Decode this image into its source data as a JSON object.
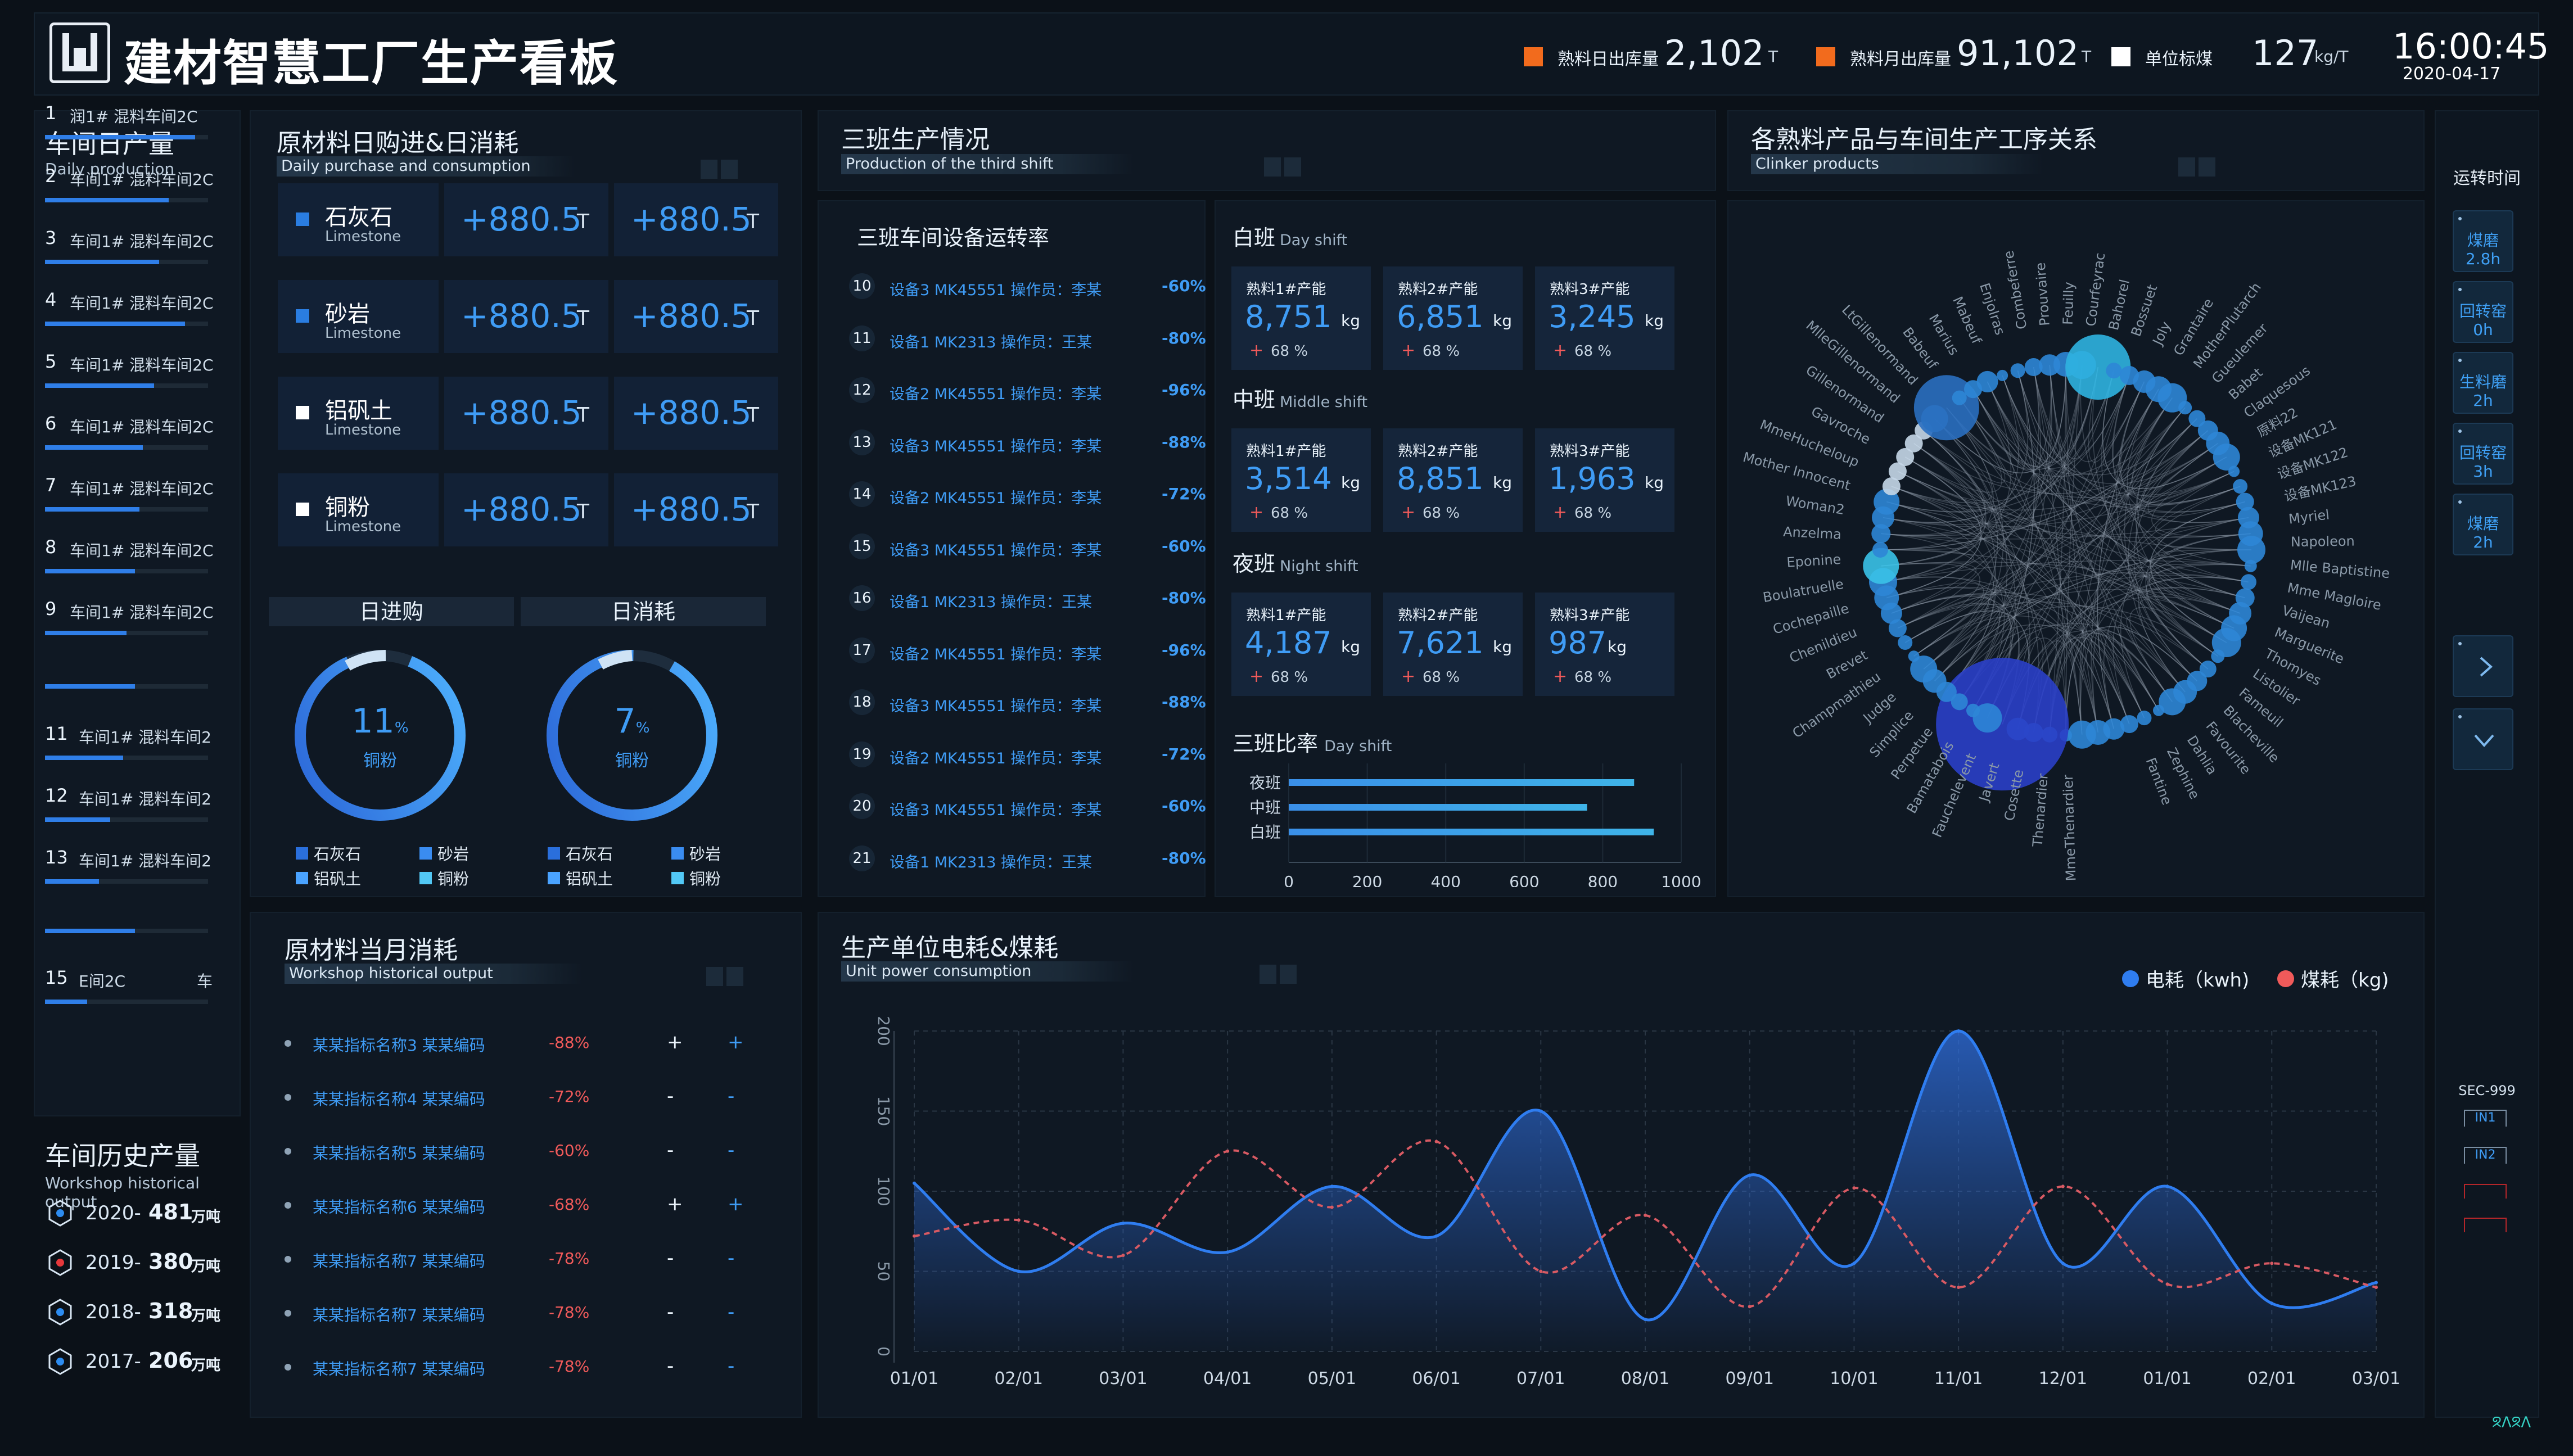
{
  "header": {
    "title": "建材智慧工厂生产看板",
    "stats": [
      {
        "label": "熟料日出库量",
        "value": "2,102",
        "unit": "T",
        "color": "#f26b1d"
      },
      {
        "label": "熟料月出库量",
        "value": "91,102",
        "unit": "T",
        "color": "#f26b1d"
      },
      {
        "label": "单位标煤",
        "value": "127",
        "unit": "kg/T",
        "color": "#ffffff"
      }
    ],
    "time": "16:00:45",
    "date": "2020-04-17"
  },
  "workshop_daily": {
    "title": "车间日产量",
    "subtitle": "Daily production",
    "items": [
      {
        "no": "1",
        "label": "润1# 混料车间2C",
        "progress": 0.92
      },
      {
        "no": "2",
        "label": "车间1# 混料车间2C",
        "progress": 0.76
      },
      {
        "no": "3",
        "label": "车间1# 混料车间2C",
        "progress": 0.7
      },
      {
        "no": "4",
        "label": "车间1# 混料车间2C",
        "progress": 0.86
      },
      {
        "no": "5",
        "label": "车间1# 混料车间2C",
        "progress": 0.67
      },
      {
        "no": "6",
        "label": "车间1# 混料车间2C",
        "progress": 0.6
      },
      {
        "no": "7",
        "label": "车间1# 混料车间2C",
        "progress": 0.58
      },
      {
        "no": "8",
        "label": "车间1# 混料车间2C",
        "progress": 0.55
      },
      {
        "no": "9",
        "label": "车间1# 混料车间2C",
        "progress": 0.5
      },
      {
        "no": "11",
        "label": "车间1# 混料车间2",
        "progress": 0.48
      },
      {
        "no": "12",
        "label": "车间1# 混料车间2",
        "progress": 0.4
      },
      {
        "no": "13",
        "label": "车间1# 混料车间2",
        "progress": 0.33
      },
      {
        "no": "15",
        "label": "E间2C",
        "extra": "车",
        "progress": 0.26
      }
    ]
  },
  "workshop_history": {
    "title": "车间历史产量",
    "subtitle": "Workshop historical output",
    "items": [
      {
        "year": "2020-",
        "value": "481",
        "unit": "万吨",
        "color": "#2d8cf0"
      },
      {
        "year": "2019-",
        "value": "380",
        "unit": "万吨",
        "color": "#e6383b"
      },
      {
        "year": "2018-",
        "value": "318",
        "unit": "万吨",
        "color": "#2d8cf0"
      },
      {
        "year": "2017-",
        "value": "206",
        "unit": "万吨",
        "color": "#2d8cf0"
      }
    ]
  },
  "raw_material": {
    "title": "原材料日购进&日消耗",
    "subtitle": "Daily purchase and consumption",
    "rows": [
      {
        "name": "石灰石",
        "en": "Limestone",
        "v1": "+880.5",
        "v2": "+880.5",
        "unit": "T",
        "color": "#2a7de1"
      },
      {
        "name": "砂岩",
        "en": "Limestone",
        "v1": "+880.5",
        "v2": "+880.5",
        "unit": "T",
        "color": "#2a7de1"
      },
      {
        "name": "铝矾土",
        "en": "Limestone",
        "v1": "+880.5",
        "v2": "+880.5",
        "unit": "T",
        "color": "#ffffff"
      },
      {
        "name": "铜粉",
        "en": "Limestone",
        "v1": "+880.5",
        "v2": "+880.5",
        "unit": "T",
        "color": "#ffffff"
      }
    ],
    "purchase": {
      "label": "日进购",
      "value": "11",
      "unit": "%",
      "name": "铜粉"
    },
    "consume": {
      "label": "日消耗",
      "value": "7",
      "unit": "%",
      "name": "铜粉"
    },
    "legend": [
      {
        "name": "石灰石",
        "color": "#2a6fdc"
      },
      {
        "name": "砂岩",
        "color": "#3a8cf0"
      },
      {
        "name": "铝矾土",
        "color": "#4aa3ff"
      },
      {
        "name": "铜粉",
        "color": "#52c8f5"
      }
    ]
  },
  "monthly": {
    "title": "原材料当月消耗",
    "subtitle": "Workshop historical output",
    "rows": [
      {
        "name": "某某指标名称3 某某编码",
        "pct": "-88%",
        "a": "+",
        "b": "+"
      },
      {
        "name": "某某指标名称4 某某编码",
        "pct": "-72%",
        "a": "-",
        "b": "-"
      },
      {
        "name": "某某指标名称5 某某编码",
        "pct": "-60%",
        "a": "-",
        "b": "-"
      },
      {
        "name": "某某指标名称6 某某编码",
        "pct": "-68%",
        "a": "+",
        "b": "+"
      },
      {
        "name": "某某指标名称7 某某编码",
        "pct": "-78%",
        "a": "-",
        "b": "-"
      },
      {
        "name": "某某指标名称7 某某编码",
        "pct": "-78%",
        "a": "-",
        "b": "-"
      },
      {
        "name": "某某指标名称7 某某编码",
        "pct": "-78%",
        "a": "-",
        "b": "-"
      }
    ]
  },
  "shift3": {
    "title": "三班生产情况",
    "subtitle": "Production of the third shift",
    "equip_title": "三班车间设备运转率",
    "equipment": [
      {
        "no": "10",
        "name": "设备3 MK45551 操作员：李某",
        "pct": "-60%"
      },
      {
        "no": "11",
        "name": "设备1 MK2313 操作员：王某",
        "pct": "-80%"
      },
      {
        "no": "12",
        "name": "设备2 MK45551 操作员：李某",
        "pct": "-96%"
      },
      {
        "no": "13",
        "name": "设备3 MK45551 操作员：李某",
        "pct": "-88%"
      },
      {
        "no": "14",
        "name": "设备2 MK45551 操作员：李某",
        "pct": "-72%"
      },
      {
        "no": "15",
        "name": "设备3 MK45551 操作员：李某",
        "pct": "-60%"
      },
      {
        "no": "16",
        "name": "设备1 MK2313 操作员：王某",
        "pct": "-80%"
      },
      {
        "no": "17",
        "name": "设备2 MK45551 操作员：李某",
        "pct": "-96%"
      },
      {
        "no": "18",
        "name": "设备3 MK45551 操作员：李某",
        "pct": "-88%"
      },
      {
        "no": "19",
        "name": "设备2 MK45551 操作员：李某",
        "pct": "-72%"
      },
      {
        "no": "20",
        "name": "设备3 MK45551 操作员：李某",
        "pct": "-60%"
      },
      {
        "no": "21",
        "name": "设备1 MK2313 操作员：王某",
        "pct": "-80%"
      }
    ],
    "shifts": [
      {
        "name": "白班",
        "en": "Day shift",
        "cells": [
          {
            "label": "熟料1#产能",
            "value": "8,751",
            "unit": "kg",
            "pct": "68 %"
          },
          {
            "label": "熟料2#产能",
            "value": "6,851",
            "unit": "kg",
            "pct": "68 %"
          },
          {
            "label": "熟料3#产能",
            "value": "3,245",
            "unit": "kg",
            "pct": "68 %"
          }
        ]
      },
      {
        "name": "中班",
        "en": "Middle shift",
        "cells": [
          {
            "label": "熟料1#产能",
            "value": "3,514",
            "unit": "kg",
            "pct": "68 %"
          },
          {
            "label": "熟料2#产能",
            "value": "8,851",
            "unit": "kg",
            "pct": "68 %"
          },
          {
            "label": "熟料3#产能",
            "value": "1,963",
            "unit": "kg",
            "pct": "68 %"
          }
        ]
      },
      {
        "name": "夜班",
        "en": "Night shift",
        "cells": [
          {
            "label": "熟料1#产能",
            "value": "4,187",
            "unit": "kg",
            "pct": "68 %"
          },
          {
            "label": "熟料2#产能",
            "value": "7,621",
            "unit": "kg",
            "pct": "68 %"
          },
          {
            "label": "熟料3#产能",
            "value": "987",
            "unit": "kg",
            "pct": "68 %"
          }
        ]
      }
    ],
    "ratio_title": "三班比率",
    "ratio_en": "Day shift"
  },
  "relation": {
    "title": "各熟料产品与车间生产工序关系",
    "subtitle": "Clinker products",
    "names_right": [
      "Combeferre",
      "Prouvaire",
      "Feuilly",
      "Courfeyrac",
      "Bahorel",
      "Bossuet",
      "Joly",
      "Grantaire",
      "MotherPlutarch",
      "Gueulemer",
      "Babet",
      "Claquesous",
      "原料22",
      "设备MK121",
      "设备MK122",
      "设备MK123",
      "Myriel",
      "Napoleon",
      "Mlle Baptistine",
      "Mme Magloire",
      "Vaijean",
      "Marguerite",
      "Thomyes",
      "Listolier",
      "Fameuil",
      "Blacheville",
      "Favourite",
      "Dahlia",
      "Zephine",
      "Fantine"
    ],
    "names_left": [
      "Enjolras",
      "Mabeuf",
      "Marius",
      "Babeuf",
      "LtGillenormand",
      "MlleGillenormand",
      "Gillenormand",
      "Gavroche",
      "MmeHucheloup",
      "Mother Innocent",
      "Woman2",
      "Anzelma",
      "Eponine",
      "Boulatruelle",
      "Cochepaille",
      "Chenildieu",
      "Brevet",
      "Champmathieu",
      "Judge",
      "Simplice",
      "Perpetue",
      "Bamatabois",
      "Fauchelevent",
      "Javert",
      "Cosette",
      "Thenardier",
      "MmeThenardier"
    ]
  },
  "right_bar": {
    "title": "运转时间",
    "items": [
      {
        "name": "煤磨",
        "value": "2.8h"
      },
      {
        "name": "回转窑",
        "value": "0h"
      },
      {
        "name": "生料磨",
        "value": "2h"
      },
      {
        "name": "回转窑",
        "value": "3h"
      },
      {
        "name": "煤磨",
        "value": "2h"
      }
    ],
    "sec_label": "SEC-999",
    "in1": "IN1",
    "in2": "IN2",
    "corner": "ᘝᐱᘝᐱ"
  },
  "power": {
    "title": "生产单位电耗&煤耗",
    "subtitle": "Unit power consumption",
    "legend": [
      {
        "name": "电耗（kwh)",
        "color": "#2f7df0"
      },
      {
        "name": "煤耗（kg)",
        "color": "#f05a5a"
      }
    ]
  },
  "chart_data": [
    {
      "type": "bar",
      "title": "三班比率",
      "orientation": "horizontal",
      "categories": [
        "夜班",
        "中班",
        "白班"
      ],
      "values": [
        880,
        760,
        930
      ],
      "xlim": [
        0,
        1000
      ],
      "xticks": [
        "0",
        "200",
        "400",
        "600",
        "800",
        "1000"
      ]
    },
    {
      "type": "line",
      "title": "生产单位电耗&煤耗",
      "categories": [
        "01/01",
        "02/01",
        "03/01",
        "04/01",
        "05/01",
        "06/01",
        "07/01",
        "08/01",
        "09/01",
        "10/01",
        "11/01",
        "12/01",
        "01/01",
        "02/01",
        "03/01"
      ],
      "series": [
        {
          "name": "电耗（kwh)",
          "values": [
            105,
            50,
            80,
            62,
            103,
            72,
            150,
            20,
            110,
            55,
            200,
            55,
            103,
            30,
            43
          ]
        },
        {
          "name": "煤耗（kg)",
          "values": [
            72,
            82,
            60,
            125,
            90,
            131,
            50,
            85,
            28,
            102,
            40,
            103,
            42,
            55,
            40
          ]
        }
      ],
      "ylim": [
        0,
        200
      ],
      "yticks": [
        "0",
        "50",
        "100",
        "150",
        "200"
      ],
      "grid": true,
      "legend": "top-right"
    }
  ]
}
